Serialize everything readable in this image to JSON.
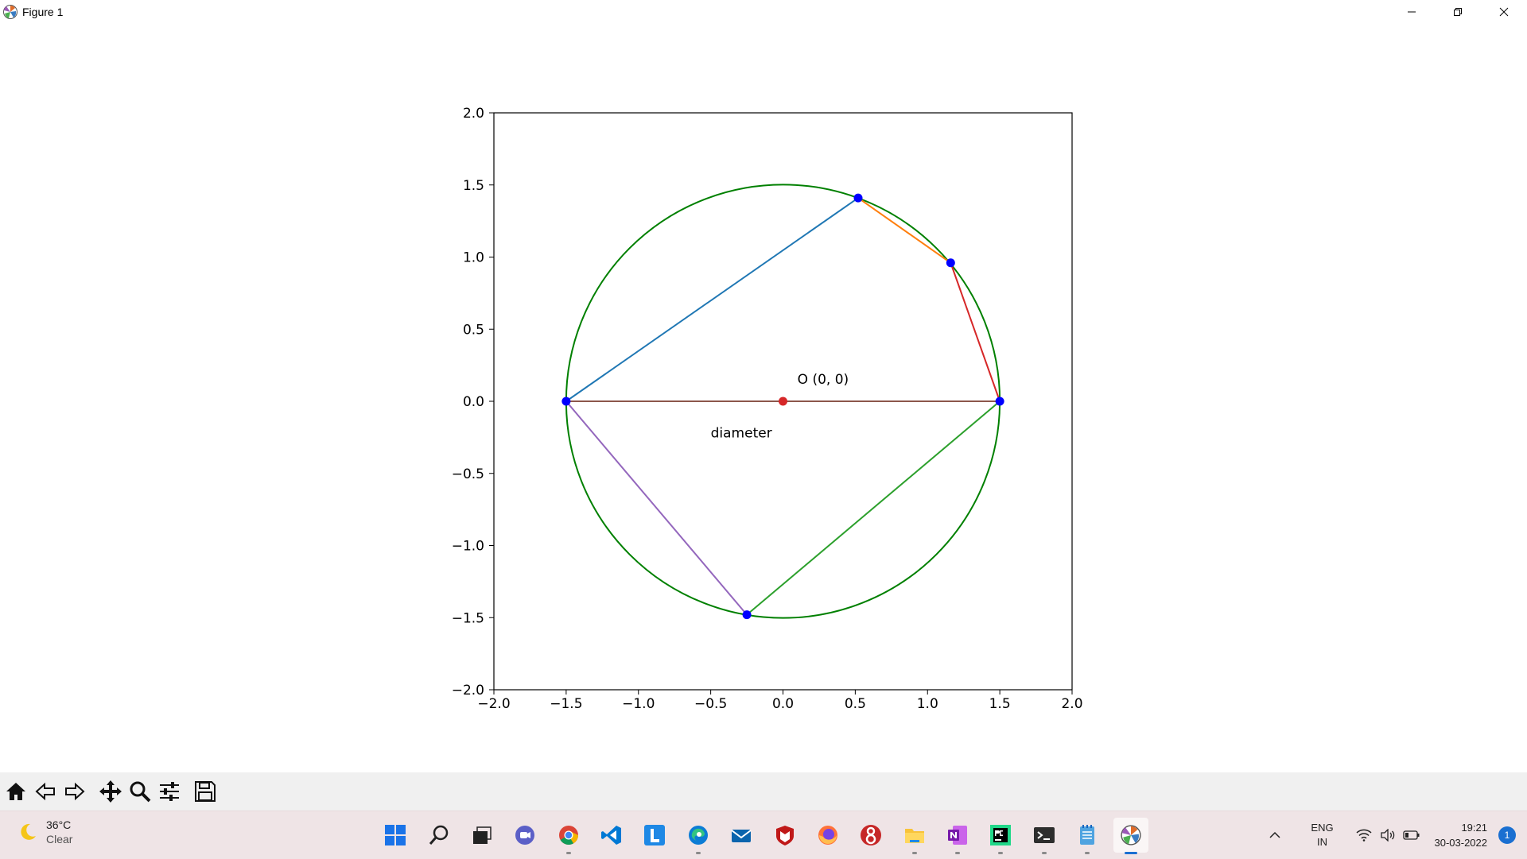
{
  "window": {
    "title": "Figure 1",
    "app_icon": "matplotlib-icon",
    "controls": [
      "minimize-icon",
      "restore-icon",
      "close-icon"
    ]
  },
  "chart_data": {
    "type": "line",
    "title": "",
    "xlabel": "",
    "ylabel": "",
    "xlim": [
      -2.0,
      2.0
    ],
    "ylim": [
      -2.0,
      2.0
    ],
    "xticks": [
      "−2.0",
      "−1.5",
      "−1.0",
      "−0.5",
      "0.0",
      "0.5",
      "1.0",
      "1.5",
      "2.0"
    ],
    "yticks": [
      "2.0",
      "1.5",
      "1.0",
      "0.5",
      "0.0",
      "−0.5",
      "−1.0",
      "−1.5",
      "−2.0"
    ],
    "xtick_values": [
      -2.0,
      -1.5,
      -1.0,
      -0.5,
      0.0,
      0.5,
      1.0,
      1.5,
      2.0
    ],
    "ytick_values": [
      2.0,
      1.5,
      1.0,
      0.5,
      0.0,
      -0.5,
      -1.0,
      -1.5,
      -2.0
    ],
    "grid": false,
    "circle": {
      "center": [
        0,
        0
      ],
      "radius": 1.5,
      "color": "#008000"
    },
    "segments": [
      {
        "from": [
          -1.5,
          0.0
        ],
        "to": [
          0.52,
          1.41
        ],
        "color": "#1f77b4"
      },
      {
        "from": [
          0.52,
          1.41
        ],
        "to": [
          1.16,
          0.96
        ],
        "color": "#ff7f0e"
      },
      {
        "from": [
          1.16,
          0.96
        ],
        "to": [
          1.5,
          0.0
        ],
        "color": "#d62728"
      },
      {
        "from": [
          1.5,
          0.0
        ],
        "to": [
          -0.25,
          -1.48
        ],
        "color": "#2ca02c"
      },
      {
        "from": [
          -0.25,
          -1.48
        ],
        "to": [
          -1.5,
          0.0
        ],
        "color": "#9467bd"
      },
      {
        "from": [
          -1.5,
          0.0
        ],
        "to": [
          1.5,
          0.0
        ],
        "color": "#8c564b"
      }
    ],
    "points": [
      {
        "x": -1.5,
        "y": 0.0,
        "color": "#0000ff"
      },
      {
        "x": 0.52,
        "y": 1.41,
        "color": "#0000ff"
      },
      {
        "x": 1.16,
        "y": 0.96,
        "color": "#0000ff"
      },
      {
        "x": 1.5,
        "y": 0.0,
        "color": "#0000ff"
      },
      {
        "x": -0.25,
        "y": -1.48,
        "color": "#0000ff"
      },
      {
        "x": 0.0,
        "y": 0.0,
        "color": "#d62728"
      }
    ],
    "annotations": [
      {
        "text": "O (0, 0)",
        "x": 0.1,
        "y": 0.12
      },
      {
        "text": "diameter",
        "x": -0.5,
        "y": -0.25
      }
    ]
  },
  "toolbar": {
    "buttons": [
      "home-icon",
      "back-icon",
      "forward-icon",
      "pan-icon",
      "zoom-icon",
      "configure-subplots-icon",
      "save-icon"
    ]
  },
  "taskbar": {
    "weather": {
      "temp": "36°C",
      "condition": "Clear",
      "icon": "moon-icon"
    },
    "apps": [
      "windows-start-icon",
      "search-icon",
      "task-view-icon",
      "teams-chat-icon",
      "chrome-icon",
      "vscode-icon",
      "l-app-icon",
      "edge-icon",
      "mail-icon",
      "mcafee-icon",
      "firefox-icon",
      "g-app-icon",
      "file-explorer-icon",
      "onenote-icon",
      "pycharm-icon",
      "terminal-icon",
      "notepad-icon",
      "matplotlib-icon"
    ],
    "tray": {
      "lang_line1": "ENG",
      "lang_line2": "IN",
      "time": "19:21",
      "date": "30-03-2022",
      "notifications": "1"
    },
    "colors": {
      "accent": "#1a6fd1",
      "background": "#efe4e6"
    }
  }
}
